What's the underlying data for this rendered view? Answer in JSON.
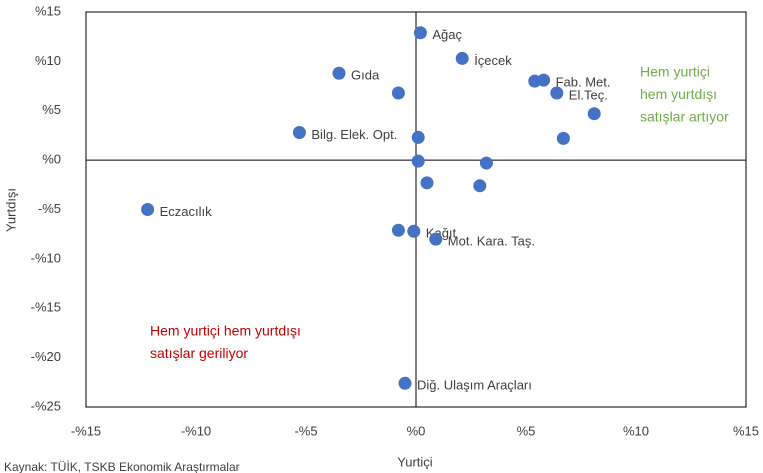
{
  "chart_data": {
    "type": "scatter",
    "x_label": "Yurtiçi",
    "y_label": "Yurtdışı",
    "source": "Kaynak: TÜİK, TSKB Ekonomik Araştırmalar",
    "color": "#4472c4",
    "x": [
      0.2,
      2.1,
      -3.5,
      -0.8,
      5.4,
      5.8,
      6.4,
      8.1,
      6.7,
      -5.3,
      0.1,
      0.1,
      3.2,
      0.5,
      2.9,
      -12.2,
      -0.8,
      -0.1,
      0.9,
      -0.5
    ],
    "values": [
      12.9,
      10.3,
      8.8,
      6.8,
      8.0,
      8.1,
      6.8,
      4.7,
      2.2,
      2.8,
      2.3,
      -0.1,
      -0.3,
      -2.3,
      -2.6,
      -5.0,
      -7.1,
      -7.2,
      -8.0,
      -22.6
    ],
    "labels": [
      "Ağaç",
      "İçecek",
      "Gıda",
      null,
      null,
      "Fab. Met.",
      "El.Teç.",
      null,
      null,
      "Bilg. Elek. Opt.",
      null,
      null,
      null,
      null,
      null,
      "Eczacılık",
      null,
      "Kağıt",
      "Mot. Kara. Taş.",
      "Diğ. Ulaşım Araçları"
    ],
    "annotations": [
      {
        "lines": [
          "Hem yurtiçi",
          "hem yurtdışı",
          "satışlar artıyor"
        ],
        "color": "#70ad47"
      },
      {
        "lines": [
          "Hem yurtiçi hem yurtdışı",
          "satışlar geriliyor"
        ],
        "color": "#c00000"
      }
    ],
    "xlim": [
      -15,
      15
    ],
    "xticks": [
      {
        "value": -15,
        "label": "-%15"
      },
      {
        "value": -10,
        "label": "-%10"
      },
      {
        "value": -5,
        "label": "-%5"
      },
      {
        "value": 0,
        "label": "%0"
      },
      {
        "value": 5,
        "label": "%5"
      },
      {
        "value": 10,
        "label": "%10"
      },
      {
        "value": 15,
        "label": "%15"
      }
    ],
    "ylim": [
      -25,
      15
    ],
    "yticks": [
      {
        "value": -25,
        "label": "-%25"
      },
      {
        "value": -20,
        "label": "-%20"
      },
      {
        "value": -15,
        "label": "-%15"
      },
      {
        "value": -10,
        "label": "-%10"
      },
      {
        "value": -5,
        "label": "-%5"
      },
      {
        "value": 0,
        "label": "%0"
      },
      {
        "value": 5,
        "label": "%5"
      },
      {
        "value": 10,
        "label": "%10"
      },
      {
        "value": 15,
        "label": "%15"
      }
    ]
  }
}
